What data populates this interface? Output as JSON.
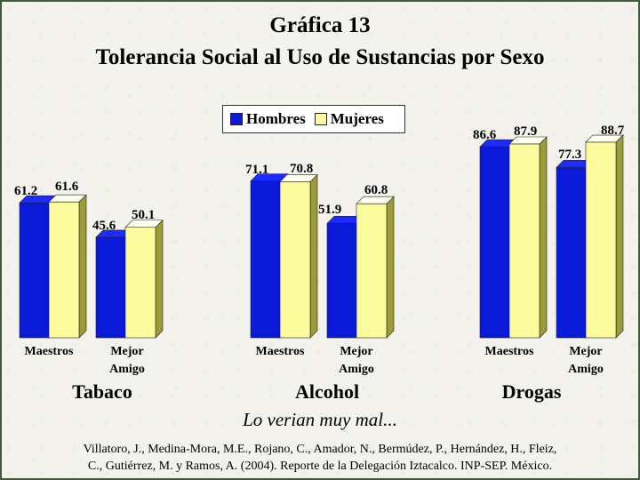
{
  "title": "Gráfica 13",
  "subtitle": "Tolerancia Social al Uso de Sustancias por Sexo",
  "legend": {
    "hombres": "Hombres",
    "mujeres": "Mujeres"
  },
  "colors": {
    "hombres": "#0a1ad8",
    "mujeres": "#fbfb9e"
  },
  "chart_data": {
    "type": "bar",
    "groups": [
      "Tabaco",
      "Alcohol",
      "Drogas"
    ],
    "categories": [
      "Maestros",
      "Mejor Amigo"
    ],
    "series": [
      {
        "name": "Hombres",
        "values": [
          [
            61.2,
            45.6
          ],
          [
            71.1,
            51.9
          ],
          [
            86.6,
            77.3
          ]
        ]
      },
      {
        "name": "Mujeres",
        "values": [
          [
            61.6,
            50.1
          ],
          [
            70.8,
            60.8
          ],
          [
            87.9,
            88.7
          ]
        ]
      }
    ],
    "ylim": [
      0,
      100
    ],
    "grid": false,
    "legend_position": "top-center",
    "annotation": "Lo verian muy mal..."
  },
  "x_labels": {
    "maestros": "Maestros",
    "mejor_line1": "Mejor",
    "mejor_line2": "Amigo"
  },
  "note": "Lo verian muy mal...",
  "citation": {
    "line1": "Villatoro, J., Medina-Mora, M.E., Rojano, C., Amador, N., Bermúdez, P., Hernández, H., Fleiz,",
    "line2": "C., Gutiérrez, M. y Ramos, A. (2004). Reporte de la Delegación Iztacalco. INP-SEP. México."
  }
}
